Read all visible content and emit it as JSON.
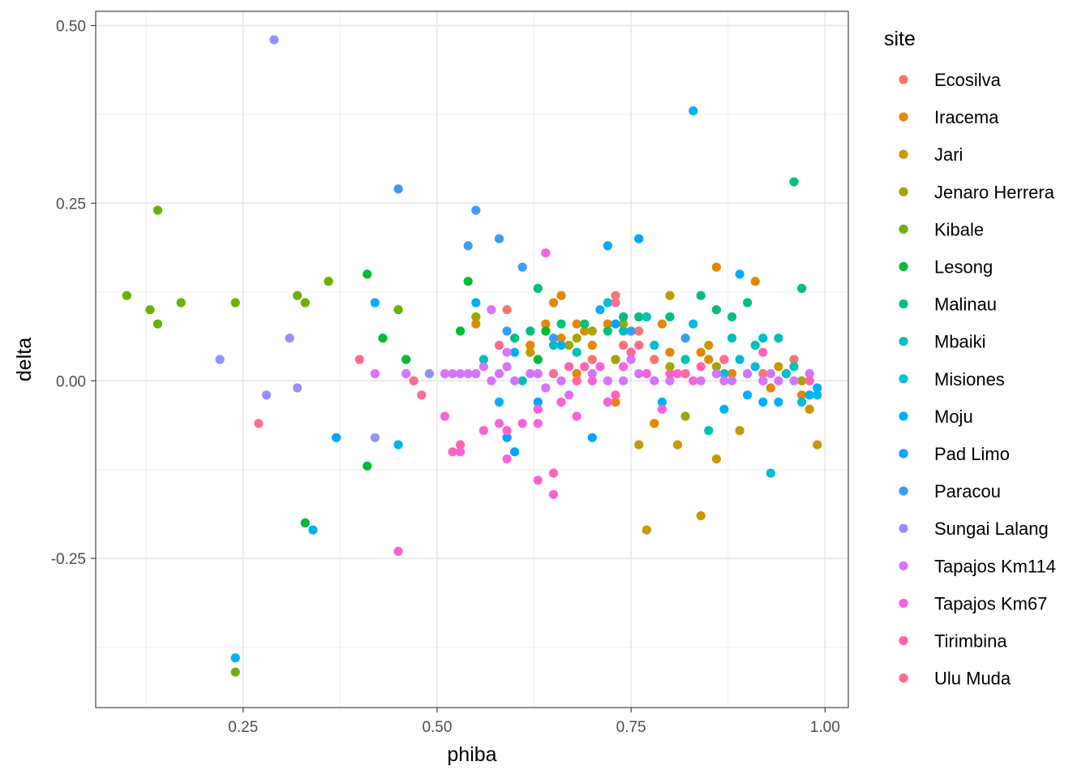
{
  "chart_data": {
    "type": "scatter",
    "title": "",
    "xlabel": "phiba",
    "ylabel": "delta",
    "xlim": [
      0.06,
      1.03
    ],
    "ylim": [
      -0.46,
      0.52
    ],
    "x_ticks": [
      0.25,
      0.5,
      0.75,
      1.0
    ],
    "x_tick_labels": [
      "0.25",
      "0.50",
      "0.75",
      "1.00"
    ],
    "y_ticks": [
      -0.25,
      0.0,
      0.25,
      0.5
    ],
    "y_tick_labels": [
      "-0.25",
      "0.00",
      "0.25",
      "0.50"
    ],
    "grid": true,
    "legend_title": "site",
    "legend_position": "right",
    "series": [
      {
        "name": "Ecosilva",
        "color": "#F8766D",
        "points": [
          [
            0.59,
            0.1
          ],
          [
            0.73,
            0.12
          ],
          [
            0.74,
            0.05
          ],
          [
            0.76,
            0.07
          ],
          [
            0.7,
            0.03
          ],
          [
            0.87,
            0.03
          ],
          [
            0.92,
            0.01
          ],
          [
            0.96,
            0.03
          ],
          [
            0.78,
            0.03
          ]
        ]
      },
      {
        "name": "Iracema",
        "color": "#E58700",
        "points": [
          [
            0.55,
            0.08
          ],
          [
            0.64,
            0.08
          ],
          [
            0.65,
            0.11
          ],
          [
            0.66,
            0.12
          ],
          [
            0.68,
            0.08
          ],
          [
            0.7,
            0.05
          ],
          [
            0.72,
            0.08
          ],
          [
            0.75,
            0.04
          ],
          [
            0.79,
            0.08
          ],
          [
            0.8,
            0.04
          ],
          [
            0.84,
            0.04
          ],
          [
            0.86,
            0.16
          ],
          [
            0.91,
            0.14
          ],
          [
            0.85,
            0.03
          ],
          [
            0.88,
            0.01
          ],
          [
            0.93,
            -0.01
          ],
          [
            0.97,
            -0.02
          ],
          [
            0.78,
            -0.06
          ],
          [
            0.73,
            -0.03
          ],
          [
            0.66,
            0.06
          ],
          [
            0.62,
            0.05
          ],
          [
            0.55,
            0.01
          ],
          [
            0.68,
            0.01
          ]
        ]
      },
      {
        "name": "Jari",
        "color": "#C99800",
        "points": [
          [
            0.76,
            -0.09
          ],
          [
            0.77,
            -0.21
          ],
          [
            0.81,
            -0.09
          ],
          [
            0.84,
            -0.19
          ],
          [
            0.86,
            -0.11
          ],
          [
            0.89,
            -0.07
          ],
          [
            0.94,
            0.02
          ],
          [
            0.98,
            -0.04
          ],
          [
            0.99,
            -0.09
          ],
          [
            0.85,
            0.05
          ],
          [
            0.77,
            0.01
          ],
          [
            0.73,
            0.03
          ],
          [
            0.69,
            0.07
          ],
          [
            0.62,
            0.04
          ],
          [
            0.8,
            0.12
          ],
          [
            0.87,
            0.01
          ]
        ]
      },
      {
        "name": "Jenaro Herrera",
        "color": "#A3A500",
        "points": [
          [
            0.55,
            0.09
          ],
          [
            0.67,
            0.05
          ],
          [
            0.7,
            0.07
          ],
          [
            0.73,
            0.03
          ],
          [
            0.8,
            0.02
          ],
          [
            0.82,
            -0.05
          ],
          [
            0.86,
            0.02
          ],
          [
            0.9,
            0.01
          ],
          [
            0.95,
            0.01
          ],
          [
            0.97,
            0.0
          ],
          [
            0.68,
            0.06
          ],
          [
            0.74,
            0.08
          ]
        ]
      },
      {
        "name": "Kibale",
        "color": "#6BB100",
        "points": [
          [
            0.1,
            0.12
          ],
          [
            0.13,
            0.1
          ],
          [
            0.14,
            0.08
          ],
          [
            0.14,
            0.24
          ],
          [
            0.17,
            0.11
          ],
          [
            0.24,
            0.11
          ],
          [
            0.24,
            -0.41
          ],
          [
            0.32,
            0.12
          ],
          [
            0.33,
            0.11
          ],
          [
            0.36,
            0.14
          ],
          [
            0.45,
            0.1
          ]
        ]
      },
      {
        "name": "Lesong",
        "color": "#00BA38",
        "points": [
          [
            0.41,
            0.15
          ],
          [
            0.41,
            -0.12
          ],
          [
            0.43,
            0.06
          ],
          [
            0.46,
            0.03
          ],
          [
            0.33,
            -0.2
          ],
          [
            0.54,
            0.14
          ],
          [
            0.53,
            0.07
          ],
          [
            0.63,
            0.03
          ],
          [
            0.64,
            0.07
          ]
        ]
      },
      {
        "name": "Malinau",
        "color": "#00BF7D",
        "points": [
          [
            0.6,
            0.06
          ],
          [
            0.63,
            0.13
          ],
          [
            0.66,
            0.08
          ],
          [
            0.69,
            0.08
          ],
          [
            0.74,
            0.09
          ],
          [
            0.76,
            0.09
          ],
          [
            0.8,
            0.09
          ],
          [
            0.84,
            0.12
          ],
          [
            0.86,
            0.1
          ],
          [
            0.88,
            0.09
          ],
          [
            0.9,
            0.11
          ],
          [
            0.96,
            0.28
          ],
          [
            0.97,
            0.13
          ],
          [
            0.72,
            0.07
          ],
          [
            0.62,
            0.07
          ]
        ]
      },
      {
        "name": "Mbaiki",
        "color": "#00C0B8",
        "points": [
          [
            0.56,
            0.03
          ],
          [
            0.61,
            0.0
          ],
          [
            0.65,
            0.05
          ],
          [
            0.68,
            0.04
          ],
          [
            0.74,
            0.07
          ],
          [
            0.77,
            0.09
          ],
          [
            0.82,
            0.03
          ],
          [
            0.85,
            -0.07
          ],
          [
            0.88,
            0.06
          ],
          [
            0.91,
            0.05
          ],
          [
            0.94,
            0.06
          ],
          [
            0.96,
            0.02
          ]
        ]
      },
      {
        "name": "Misiones",
        "color": "#00BCD8",
        "points": [
          [
            0.72,
            0.11
          ],
          [
            0.78,
            0.05
          ],
          [
            0.83,
            0.08
          ],
          [
            0.89,
            0.03
          ],
          [
            0.92,
            0.06
          ],
          [
            0.93,
            -0.13
          ],
          [
            0.95,
            0.01
          ],
          [
            0.97,
            -0.03
          ],
          [
            0.99,
            -0.02
          ],
          [
            0.91,
            0.02
          ],
          [
            0.87,
            0.01
          ]
        ]
      },
      {
        "name": "Moju",
        "color": "#00B0F6",
        "points": [
          [
            0.55,
            0.11
          ],
          [
            0.58,
            -0.03
          ],
          [
            0.6,
            0.04
          ],
          [
            0.66,
            0.05
          ],
          [
            0.71,
            0.1
          ],
          [
            0.72,
            0.19
          ],
          [
            0.79,
            -0.03
          ],
          [
            0.83,
            0.38
          ],
          [
            0.87,
            -0.04
          ],
          [
            0.89,
            0.15
          ],
          [
            0.9,
            -0.02
          ],
          [
            0.92,
            -0.03
          ],
          [
            0.94,
            -0.03
          ],
          [
            0.98,
            -0.02
          ],
          [
            0.99,
            -0.01
          ],
          [
            0.42,
            0.11
          ],
          [
            0.45,
            -0.09
          ],
          [
            0.34,
            -0.21
          ],
          [
            0.24,
            -0.39
          ]
        ]
      },
      {
        "name": "Pad Limo",
        "color": "#00A5FF",
        "points": [
          [
            0.37,
            -0.08
          ],
          [
            0.6,
            -0.1
          ],
          [
            0.7,
            -0.08
          ],
          [
            0.76,
            0.2
          ],
          [
            0.63,
            -0.03
          ],
          [
            0.59,
            -0.08
          ],
          [
            0.73,
            0.08
          ]
        ]
      },
      {
        "name": "Paracou",
        "color": "#3A9CF5",
        "points": [
          [
            0.45,
            0.27
          ],
          [
            0.54,
            0.19
          ],
          [
            0.55,
            0.24
          ],
          [
            0.58,
            0.2
          ],
          [
            0.61,
            0.16
          ],
          [
            0.65,
            0.06
          ],
          [
            0.59,
            0.07
          ],
          [
            0.75,
            0.07
          ],
          [
            0.82,
            0.06
          ]
        ]
      },
      {
        "name": "Sungai Lalang",
        "color": "#9590FF",
        "points": [
          [
            0.22,
            0.03
          ],
          [
            0.28,
            -0.02
          ],
          [
            0.29,
            0.48
          ],
          [
            0.31,
            0.06
          ],
          [
            0.32,
            -0.01
          ],
          [
            0.42,
            -0.08
          ],
          [
            0.49,
            0.01
          ],
          [
            0.47,
            0.0
          ]
        ]
      },
      {
        "name": "Tapajos Km114",
        "color": "#D575FE",
        "points": [
          [
            0.51,
            0.01
          ],
          [
            0.52,
            0.01
          ],
          [
            0.53,
            0.01
          ],
          [
            0.54,
            0.01
          ],
          [
            0.56,
            0.02
          ],
          [
            0.57,
            0.0
          ],
          [
            0.58,
            0.01
          ],
          [
            0.59,
            0.02
          ],
          [
            0.6,
            0.0
          ],
          [
            0.62,
            0.01
          ],
          [
            0.63,
            0.01
          ],
          [
            0.65,
            0.01
          ],
          [
            0.66,
            0.0
          ],
          [
            0.68,
            0.0
          ],
          [
            0.7,
            0.01
          ],
          [
            0.72,
            0.0
          ],
          [
            0.74,
            0.0
          ],
          [
            0.76,
            0.01
          ],
          [
            0.78,
            0.0
          ],
          [
            0.8,
            0.0
          ],
          [
            0.82,
            0.01
          ],
          [
            0.84,
            0.0
          ],
          [
            0.86,
            0.01
          ],
          [
            0.88,
            0.0
          ],
          [
            0.9,
            0.01
          ],
          [
            0.92,
            0.0
          ],
          [
            0.94,
            0.0
          ],
          [
            0.96,
            0.0
          ],
          [
            0.98,
            0.01
          ],
          [
            0.57,
            0.1
          ],
          [
            0.59,
            0.04
          ],
          [
            0.42,
            0.01
          ],
          [
            0.46,
            0.01
          ],
          [
            0.55,
            0.01
          ],
          [
            0.64,
            -0.01
          ],
          [
            0.67,
            -0.02
          ],
          [
            0.75,
            0.03
          ],
          [
            0.87,
            0.0
          ],
          [
            0.93,
            0.01
          ]
        ]
      },
      {
        "name": "Tapajos Km67",
        "color": "#F962DD",
        "points": [
          [
            0.51,
            -0.05
          ],
          [
            0.53,
            -0.1
          ],
          [
            0.56,
            -0.07
          ],
          [
            0.58,
            -0.06
          ],
          [
            0.59,
            -0.11
          ],
          [
            0.61,
            -0.06
          ],
          [
            0.63,
            -0.06
          ],
          [
            0.63,
            -0.14
          ],
          [
            0.65,
            -0.16
          ],
          [
            0.64,
            0.18
          ],
          [
            0.66,
            -0.03
          ],
          [
            0.68,
            -0.05
          ],
          [
            0.71,
            0.02
          ],
          [
            0.72,
            -0.03
          ],
          [
            0.74,
            0.02
          ],
          [
            0.77,
            0.01
          ],
          [
            0.79,
            -0.04
          ],
          [
            0.81,
            0.01
          ],
          [
            0.83,
            0.0
          ],
          [
            0.63,
            -0.04
          ],
          [
            0.59,
            -0.07
          ],
          [
            0.7,
            0.0
          ],
          [
            0.45,
            -0.24
          ]
        ]
      },
      {
        "name": "Tirimbina",
        "color": "#FF64B0",
        "points": [
          [
            0.52,
            -0.1
          ],
          [
            0.53,
            -0.09
          ],
          [
            0.65,
            -0.13
          ],
          [
            0.67,
            0.02
          ],
          [
            0.73,
            -0.02
          ],
          [
            0.8,
            0.01
          ],
          [
            0.84,
            0.02
          ],
          [
            0.92,
            0.04
          ],
          [
            0.98,
            0.0
          ],
          [
            0.75,
            0.04
          ],
          [
            0.69,
            0.02
          ]
        ]
      },
      {
        "name": "Ulu Muda",
        "color": "#FF6C91",
        "points": [
          [
            0.27,
            -0.06
          ],
          [
            0.4,
            0.03
          ],
          [
            0.47,
            0.0
          ],
          [
            0.48,
            -0.02
          ],
          [
            0.58,
            0.05
          ],
          [
            0.65,
            0.01
          ],
          [
            0.73,
            0.11
          ],
          [
            0.82,
            0.01
          ],
          [
            0.87,
            0.03
          ],
          [
            0.76,
            0.05
          ],
          [
            0.68,
            0.0
          ]
        ]
      }
    ]
  }
}
